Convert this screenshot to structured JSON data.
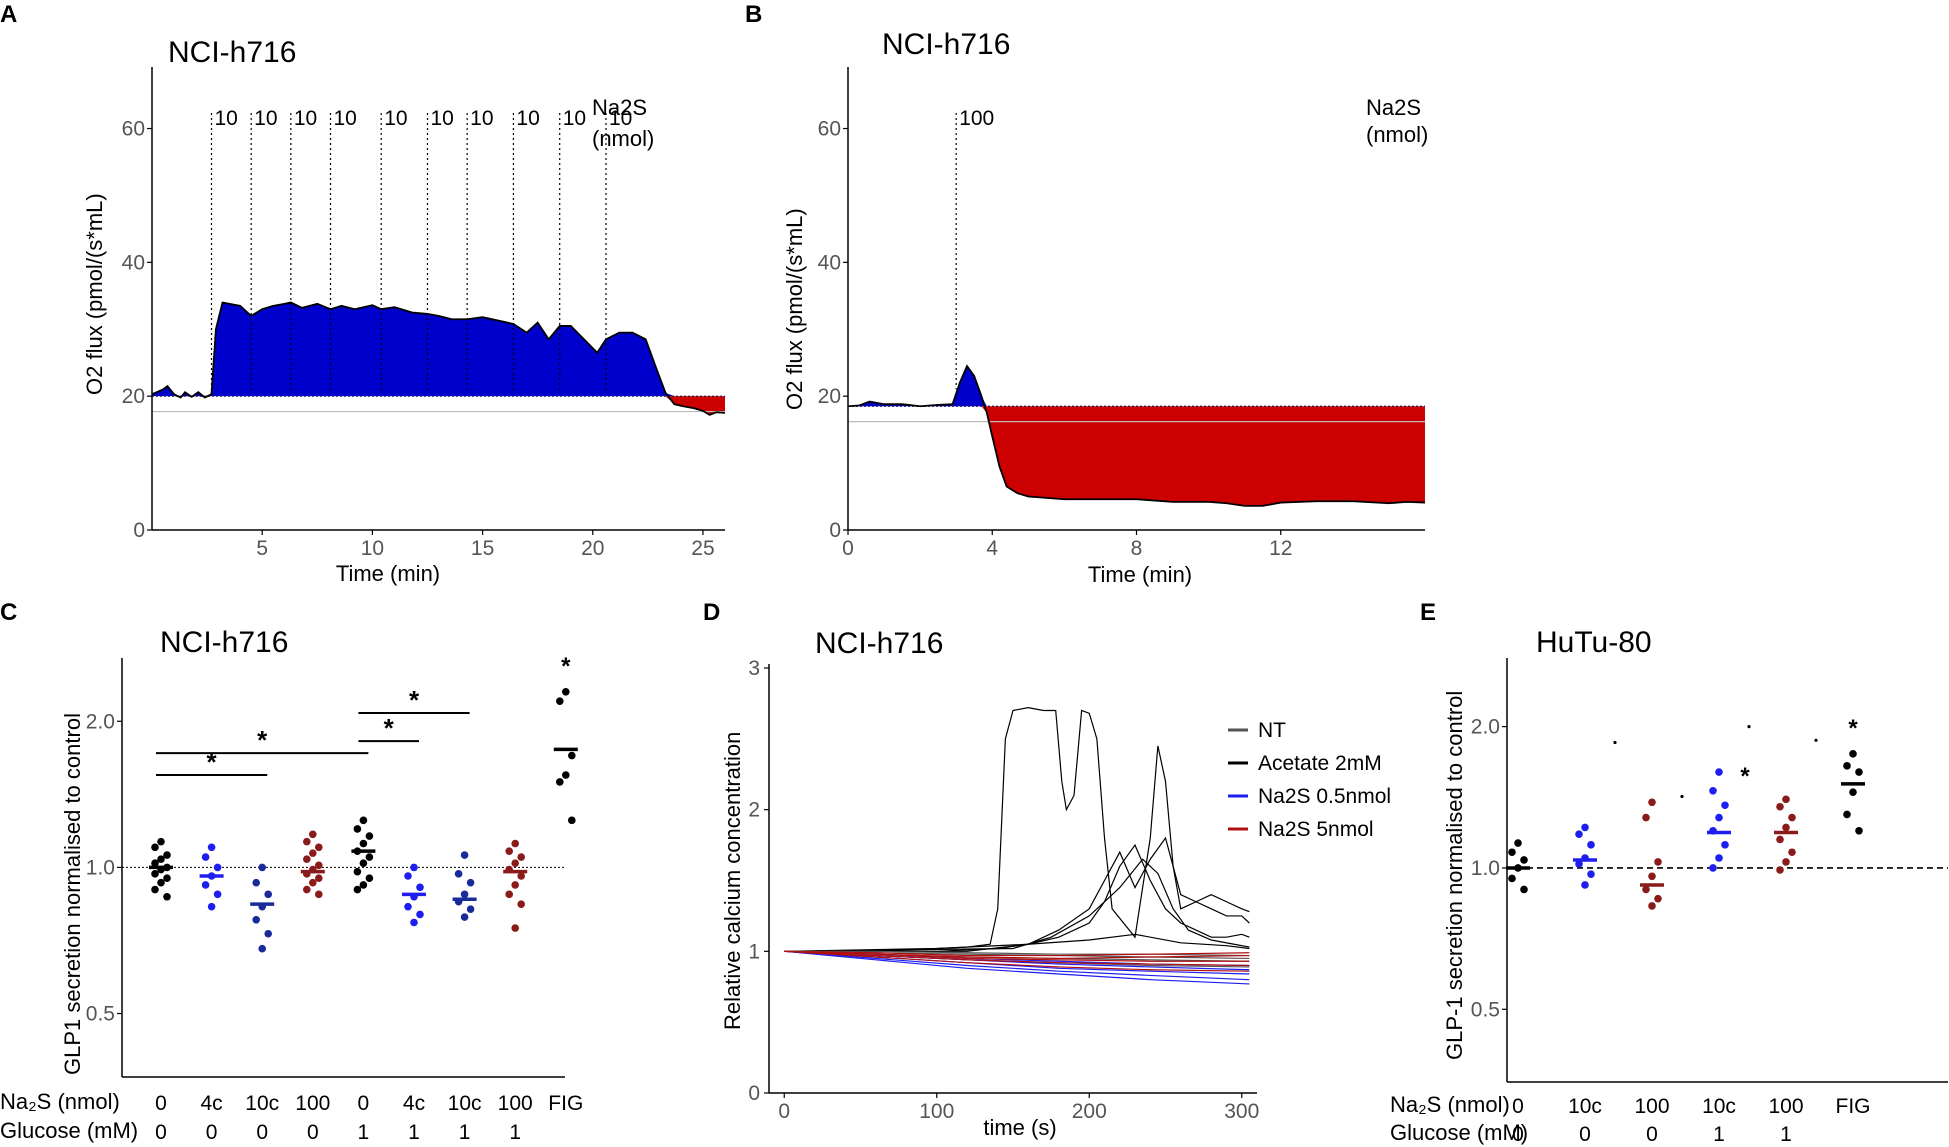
{
  "chart_data": [
    {
      "panel": "A",
      "type": "area",
      "title": "NCI-h716",
      "xlabel": "Time (min)",
      "ylabel": "O2 flux (pmol/(s*mL)",
      "xlim": [
        0,
        26
      ],
      "ylim": [
        0,
        68
      ],
      "xticks": [
        5,
        10,
        15,
        20,
        25
      ],
      "yticks": [
        0,
        20,
        40,
        60
      ],
      "baseline": 20,
      "injection_header": [
        "Na2S",
        "(nmol)"
      ],
      "injections": [
        {
          "time": 2.7,
          "label": "10"
        },
        {
          "time": 4.5,
          "label": "10"
        },
        {
          "time": 6.3,
          "label": "10"
        },
        {
          "time": 8.1,
          "label": "10"
        },
        {
          "time": 10.4,
          "label": "10"
        },
        {
          "time": 12.5,
          "label": "10"
        },
        {
          "time": 14.3,
          "label": "10"
        },
        {
          "time": 16.4,
          "label": "10"
        },
        {
          "time": 18.5,
          "label": "10"
        },
        {
          "time": 20.6,
          "label": "10"
        }
      ],
      "trace": {
        "x": [
          0,
          0.5,
          0.7,
          1.0,
          1.3,
          1.5,
          1.8,
          2.1,
          2.4,
          2.7,
          2.9,
          3.2,
          4.0,
          4.5,
          5.0,
          5.5,
          6.0,
          6.3,
          6.8,
          7.5,
          8.1,
          8.6,
          9.2,
          10.0,
          10.4,
          11.0,
          11.8,
          12.5,
          13.0,
          13.6,
          14.3,
          15.0,
          15.7,
          16.4,
          17.0,
          17.5,
          18.0,
          18.5,
          19.0,
          19.6,
          20.2,
          20.6,
          21.2,
          21.8,
          22.4,
          22.9,
          23.3,
          23.7,
          24.1,
          24.6,
          25.0,
          25.3,
          25.6,
          26.0
        ],
        "y": [
          20.3,
          21,
          21.5,
          20.3,
          19.8,
          20.6,
          19.9,
          20.6,
          19.8,
          20.3,
          30,
          34,
          33.5,
          32,
          33,
          33.5,
          33.8,
          34,
          33.2,
          33.8,
          33,
          33.5,
          33,
          33.6,
          33,
          33.3,
          32.5,
          32.3,
          32,
          31.5,
          31.5,
          31.8,
          31.3,
          30.8,
          29.5,
          31,
          28.5,
          30.5,
          30.5,
          28.5,
          26.5,
          28.5,
          29.5,
          29.5,
          28.5,
          24,
          20.5,
          18.8,
          18.5,
          18.2,
          17.8,
          17.2,
          17.6,
          17.5
        ]
      }
    },
    {
      "panel": "B",
      "type": "area",
      "title": "NCI-h716",
      "xlabel": "Time (min)",
      "ylabel": "O2 flux (pmol/(s*mL)",
      "xlim": [
        0,
        16
      ],
      "ylim": [
        0,
        68
      ],
      "xticks": [
        0,
        4,
        8,
        12
      ],
      "yticks": [
        0,
        20,
        40,
        60
      ],
      "baseline": 18.5,
      "injection_header": [
        "Na2S",
        "(nmol)"
      ],
      "injections": [
        {
          "time": 3.0,
          "label": "100"
        }
      ],
      "trace": {
        "x": [
          0,
          0.3,
          0.6,
          1.0,
          1.5,
          2.0,
          2.5,
          2.9,
          3.1,
          3.3,
          3.5,
          3.7,
          3.85,
          4.0,
          4.2,
          4.4,
          4.7,
          5.0,
          5.5,
          6.0,
          7.0,
          8.0,
          9.0,
          10.0,
          10.5,
          11.0,
          11.5,
          12.0,
          13.0,
          14.0,
          15.0,
          15.5,
          16.0
        ],
        "y": [
          18.5,
          18.6,
          19.2,
          18.8,
          18.8,
          18.5,
          18.7,
          18.8,
          22,
          24.5,
          23,
          20,
          17.5,
          14,
          9.5,
          6.5,
          5.5,
          5,
          4.8,
          4.6,
          4.6,
          4.6,
          4.2,
          4.2,
          4.0,
          3.6,
          3.6,
          4.1,
          4.3,
          4.3,
          4.0,
          4.2,
          4.1
        ]
      }
    },
    {
      "panel": "C",
      "type": "scatter",
      "title": "NCI-h716",
      "ylabel": "GLP1 secretion normalised to control",
      "yscale": "log",
      "yticks": [
        "0.5",
        "1.0",
        "2.0"
      ],
      "reference_line": 1.0,
      "row_labels": [
        "Na₂S (nmol)",
        "Glucose (mM)"
      ],
      "categories": [
        {
          "na2s": "0",
          "glucose": "0",
          "color": "#000000",
          "mean": 1.0,
          "points": [
            1.13,
            1.1,
            1.06,
            1.04,
            1.02,
            1.0,
            0.99,
            0.97,
            0.95,
            0.93,
            0.9,
            0.87
          ]
        },
        {
          "na2s": "4c",
          "glucose": "0",
          "color": "#1e1ef0",
          "mean": 0.96,
          "points": [
            1.1,
            1.05,
            1.0,
            0.96,
            0.92,
            0.88,
            0.83
          ]
        },
        {
          "na2s": "10c",
          "glucose": "0",
          "color": "#1a2a9a",
          "mean": 0.84,
          "points": [
            1.0,
            0.93,
            0.88,
            0.83,
            0.78,
            0.73,
            0.68
          ]
        },
        {
          "na2s": "100",
          "glucose": "0",
          "color": "#8b1a1a",
          "mean": 0.98,
          "points": [
            1.17,
            1.13,
            1.1,
            1.07,
            1.04,
            1.01,
            0.99,
            0.97,
            0.95,
            0.93,
            0.9,
            0.88
          ]
        },
        {
          "na2s": "0",
          "glucose": "1",
          "color": "#000000",
          "mean": 1.08,
          "points": [
            1.25,
            1.2,
            1.16,
            1.12,
            1.08,
            1.05,
            1.02,
            0.98,
            0.95,
            0.92,
            0.9
          ]
        },
        {
          "na2s": "4c",
          "glucose": "1",
          "color": "#1e1ef0",
          "mean": 0.88,
          "points": [
            1.0,
            0.96,
            0.91,
            0.87,
            0.83,
            0.8,
            0.77
          ]
        },
        {
          "na2s": "10c",
          "glucose": "1",
          "color": "#1a2a9a",
          "mean": 0.86,
          "points": [
            1.06,
            0.97,
            0.93,
            0.88,
            0.85,
            0.82,
            0.79
          ]
        },
        {
          "na2s": "100",
          "glucose": "1",
          "color": "#8b1a1a",
          "mean": 0.98,
          "points": [
            1.12,
            1.08,
            1.05,
            1.02,
            0.99,
            0.96,
            0.92,
            0.88,
            0.84,
            0.75
          ]
        },
        {
          "na2s": "FIG",
          "glucose": "",
          "color": "#000000",
          "mean": 1.75,
          "points": [
            2.3,
            2.2,
            1.7,
            1.55,
            1.5,
            1.25
          ]
        }
      ],
      "significance_brackets": [
        {
          "from": 0,
          "to": 2,
          "level": 1.55,
          "label": "*"
        },
        {
          "from": 0,
          "to": 4,
          "level": 1.72,
          "label": "*"
        },
        {
          "from": 4,
          "to": 5,
          "level": 1.82,
          "label": "*"
        },
        {
          "from": 4,
          "to": 6,
          "level": 2.08,
          "label": "*"
        }
      ],
      "category_stars": [
        {
          "index": 8,
          "label": "*"
        }
      ]
    },
    {
      "panel": "D",
      "type": "line",
      "title": "NCI-h716",
      "xlabel": "time (s)",
      "ylabel": "Relative calcium concentration",
      "xlim": [
        -10,
        310
      ],
      "ylim": [
        0,
        3
      ],
      "xticks": [
        0,
        100,
        200,
        300
      ],
      "yticks": [
        0,
        1,
        2,
        3
      ],
      "legend": [
        {
          "name": "NT",
          "color": "#555555"
        },
        {
          "name": "Acetate 2mM",
          "color": "#000000"
        },
        {
          "name": "Na2S 0.5nmol",
          "color": "#1e1ef0"
        },
        {
          "name": "Na2S 5nmol",
          "color": "#b01010"
        }
      ],
      "series": [
        {
          "name": "Acetate 2mM",
          "x": [
            0,
            60,
            120,
            135,
            140,
            145,
            150,
            160,
            170,
            178,
            182,
            185,
            190,
            195,
            200,
            205,
            210,
            215,
            230,
            240,
            245,
            250,
            255,
            260,
            270,
            280,
            290,
            300,
            305
          ],
          "y": [
            1.0,
            1.0,
            1.03,
            1.05,
            1.3,
            2.5,
            2.7,
            2.72,
            2.7,
            2.7,
            2.2,
            2.0,
            2.1,
            2.7,
            2.68,
            2.5,
            1.8,
            1.3,
            1.1,
            1.8,
            2.45,
            2.2,
            1.6,
            1.3,
            1.35,
            1.4,
            1.35,
            1.3,
            1.28
          ]
        },
        {
          "name": "Acetate 2mM",
          "x": [
            0,
            100,
            140,
            160,
            180,
            200,
            210,
            220,
            230,
            240,
            250,
            260,
            270,
            280,
            290,
            300,
            305
          ],
          "y": [
            1.0,
            1.0,
            1.02,
            1.05,
            1.15,
            1.3,
            1.5,
            1.7,
            1.45,
            1.65,
            1.8,
            1.4,
            1.35,
            1.3,
            1.25,
            1.25,
            1.2
          ]
        },
        {
          "name": "Acetate 2mM",
          "x": [
            0,
            120,
            160,
            180,
            200,
            210,
            220,
            230,
            240,
            250,
            260,
            270,
            280,
            290,
            300,
            305
          ],
          "y": [
            1.0,
            1.0,
            1.05,
            1.1,
            1.2,
            1.35,
            1.6,
            1.75,
            1.5,
            1.3,
            1.2,
            1.15,
            1.1,
            1.1,
            1.12,
            1.1
          ]
        },
        {
          "name": "Acetate 2mM",
          "x": [
            0,
            150,
            175,
            200,
            220,
            235,
            245,
            255,
            265,
            280,
            295,
            305
          ],
          "y": [
            1.0,
            1.02,
            1.1,
            1.25,
            1.45,
            1.65,
            1.55,
            1.3,
            1.15,
            1.08,
            1.05,
            1.03
          ]
        },
        {
          "name": "Acetate 2mM",
          "x": [
            0,
            100,
            160,
            200,
            230,
            260,
            290,
            305
          ],
          "y": [
            1.0,
            1.02,
            1.05,
            1.08,
            1.12,
            1.06,
            1.04,
            1.02
          ]
        },
        {
          "name": "NT",
          "x": [
            0,
            60,
            120,
            180,
            240,
            305
          ],
          "y": [
            1.0,
            0.99,
            0.98,
            0.97,
            0.96,
            0.95
          ]
        },
        {
          "name": "NT",
          "x": [
            0,
            60,
            120,
            180,
            240,
            305
          ],
          "y": [
            1.0,
            0.98,
            0.96,
            0.95,
            0.94,
            0.93
          ]
        },
        {
          "name": "NT",
          "x": [
            0,
            60,
            120,
            180,
            240,
            305
          ],
          "y": [
            1.0,
            0.97,
            0.94,
            0.92,
            0.9,
            0.89
          ]
        },
        {
          "name": "NT",
          "x": [
            0,
            60,
            120,
            180,
            240,
            305
          ],
          "y": [
            1.0,
            1.0,
            0.99,
            0.98,
            0.98,
            0.97
          ]
        },
        {
          "name": "Na2S 0.5nmol",
          "x": [
            0,
            60,
            120,
            180,
            240,
            305
          ],
          "y": [
            1.0,
            0.95,
            0.9,
            0.86,
            0.83,
            0.8
          ]
        },
        {
          "name": "Na2S 0.5nmol",
          "x": [
            0,
            60,
            120,
            180,
            240,
            305
          ],
          "y": [
            1.0,
            0.96,
            0.92,
            0.88,
            0.86,
            0.84
          ]
        },
        {
          "name": "Na2S 0.5nmol",
          "x": [
            0,
            60,
            120,
            180,
            240,
            305
          ],
          "y": [
            1.0,
            0.97,
            0.94,
            0.91,
            0.89,
            0.87
          ]
        },
        {
          "name": "Na2S 0.5nmol",
          "x": [
            0,
            60,
            120,
            180,
            240,
            305
          ],
          "y": [
            1.0,
            0.94,
            0.88,
            0.84,
            0.8,
            0.77
          ]
        },
        {
          "name": "Na2S 0.5nmol",
          "x": [
            0,
            60,
            120,
            180,
            240,
            305
          ],
          "y": [
            1.0,
            0.98,
            0.95,
            0.93,
            0.91,
            0.9
          ]
        },
        {
          "name": "Na2S 5nmol",
          "x": [
            0,
            60,
            120,
            180,
            240,
            305
          ],
          "y": [
            1.0,
            0.98,
            0.96,
            0.95,
            0.96,
            0.97
          ]
        },
        {
          "name": "Na2S 5nmol",
          "x": [
            0,
            60,
            120,
            180,
            240,
            305
          ],
          "y": [
            1.0,
            0.97,
            0.94,
            0.92,
            0.91,
            0.9
          ]
        },
        {
          "name": "Na2S 5nmol",
          "x": [
            0,
            60,
            120,
            180,
            240,
            305
          ],
          "y": [
            1.0,
            0.99,
            0.97,
            0.97,
            0.98,
            0.99
          ]
        },
        {
          "name": "Na2S 5nmol",
          "x": [
            0,
            60,
            120,
            180,
            240,
            305
          ],
          "y": [
            1.0,
            0.96,
            0.92,
            0.89,
            0.87,
            0.86
          ]
        },
        {
          "name": "Na2S 5nmol",
          "x": [
            0,
            60,
            120,
            180,
            240,
            305
          ],
          "y": [
            1.0,
            0.98,
            0.95,
            0.94,
            0.93,
            0.93
          ]
        }
      ]
    },
    {
      "panel": "E",
      "type": "scatter",
      "title": "HuTu-80",
      "ylabel": "GLP-1 secretion normalised to control",
      "yscale": "log",
      "yticks": [
        "0.5",
        "1.0",
        "2.0"
      ],
      "reference_line": 1.0,
      "row_labels": [
        "Na₂S (nmol)",
        "Glucose (mM)"
      ],
      "categories": [
        {
          "na2s": "0",
          "glucose": "0",
          "color": "#000000",
          "mean": 1.0,
          "points": [
            1.13,
            1.08,
            1.04,
            1.0,
            0.95,
            0.9
          ]
        },
        {
          "na2s": "10c",
          "glucose": "0",
          "color": "#1e1ef0",
          "mean": 1.04,
          "points": [
            1.22,
            1.18,
            1.12,
            1.05,
            1.02,
            0.97,
            0.92
          ]
        },
        {
          "na2s": "100",
          "glucose": "0",
          "color": "#8b1a1a",
          "mean": 0.92,
          "points": [
            1.38,
            1.28,
            1.03,
            0.96,
            0.9,
            0.86,
            0.83
          ]
        },
        {
          "na2s": "10c",
          "glucose": "1",
          "color": "#1e1ef0",
          "mean": 1.19,
          "points": [
            1.6,
            1.46,
            1.36,
            1.28,
            1.2,
            1.12,
            1.05,
            1.0
          ]
        },
        {
          "na2s": "100",
          "glucose": "1",
          "color": "#8b1a1a",
          "mean": 1.19,
          "points": [
            1.4,
            1.35,
            1.28,
            1.22,
            1.15,
            1.08,
            1.03,
            0.99
          ]
        },
        {
          "na2s": "FIG",
          "glucose": "",
          "color": "#000000",
          "mean": 1.51,
          "points": [
            1.75,
            1.65,
            1.6,
            1.45,
            1.3,
            1.2
          ]
        }
      ],
      "category_stars": [
        {
          "index": 5,
          "label": "*"
        },
        {
          "index": 3,
          "label": "*"
        }
      ],
      "dots": [
        {
          "index": 1,
          "value": 1.85
        },
        {
          "index": 2,
          "value": 1.42
        },
        {
          "index": 3,
          "value": 2.0
        },
        {
          "index": 4,
          "value": 1.87
        }
      ]
    }
  ]
}
